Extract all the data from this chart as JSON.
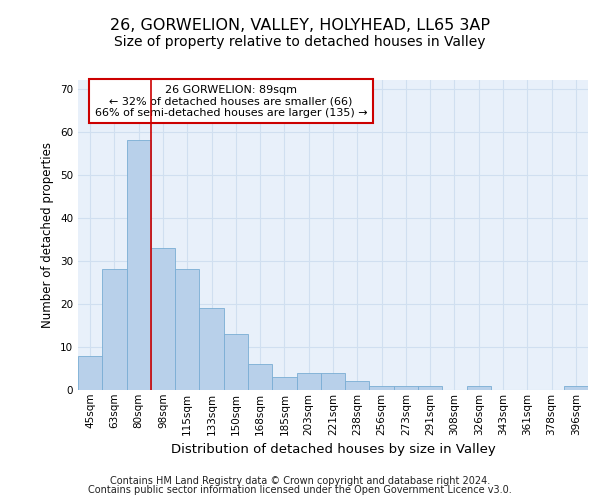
{
  "title1": "26, GORWELION, VALLEY, HOLYHEAD, LL65 3AP",
  "title2": "Size of property relative to detached houses in Valley",
  "xlabel": "Distribution of detached houses by size in Valley",
  "ylabel": "Number of detached properties",
  "categories": [
    "45sqm",
    "63sqm",
    "80sqm",
    "98sqm",
    "115sqm",
    "133sqm",
    "150sqm",
    "168sqm",
    "185sqm",
    "203sqm",
    "221sqm",
    "238sqm",
    "256sqm",
    "273sqm",
    "291sqm",
    "308sqm",
    "326sqm",
    "343sqm",
    "361sqm",
    "378sqm",
    "396sqm"
  ],
  "values": [
    8,
    28,
    58,
    33,
    28,
    19,
    13,
    6,
    3,
    4,
    4,
    2,
    1,
    1,
    1,
    0,
    1,
    0,
    0,
    0,
    1
  ],
  "bar_color": "#b8d0ea",
  "bar_edge_color": "#7aadd4",
  "grid_color": "#d0dff0",
  "bg_color": "#e8f0fa",
  "vline_color": "#cc0000",
  "vline_pos": 2.5,
  "annotation_text": "26 GORWELION: 89sqm\n← 32% of detached houses are smaller (66)\n66% of semi-detached houses are larger (135) →",
  "annotation_box_color": "#ffffff",
  "annotation_box_edge": "#cc0000",
  "footer1": "Contains HM Land Registry data © Crown copyright and database right 2024.",
  "footer2": "Contains public sector information licensed under the Open Government Licence v3.0.",
  "ylim": [
    0,
    72
  ],
  "yticks": [
    0,
    10,
    20,
    30,
    40,
    50,
    60,
    70
  ],
  "title1_fontsize": 11.5,
  "title2_fontsize": 10,
  "xlabel_fontsize": 9.5,
  "ylabel_fontsize": 8.5,
  "tick_fontsize": 7.5,
  "annot_fontsize": 8,
  "footer_fontsize": 7
}
